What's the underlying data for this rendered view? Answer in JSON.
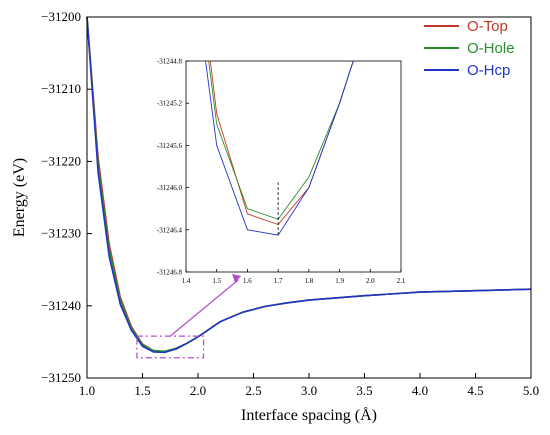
{
  "chart_data": {
    "type": "line",
    "xlabel": "Interface spacing (Å)",
    "ylabel": "Energy (eV)",
    "xlim": [
      1.0,
      5.0
    ],
    "ylim": [
      -31250,
      -31200
    ],
    "xticks": [
      "1.0",
      "1.5",
      "2.0",
      "2.5",
      "3.0",
      "3.5",
      "4.0",
      "4.5",
      "5.0"
    ],
    "yticks": [
      "−31200",
      "−31210",
      "−31220",
      "−31230",
      "−31240",
      "−31250"
    ],
    "legend_position": "top-right",
    "grid": false,
    "series": [
      {
        "name": "O-Top",
        "color": "#c0392b",
        "x": [
          1.0,
          1.1,
          1.2,
          1.3,
          1.4,
          1.5,
          1.6,
          1.7,
          1.8,
          1.9,
          2.0,
          2.2,
          2.4,
          2.6,
          2.8,
          3.0,
          3.5,
          4.0,
          4.5,
          5.0
        ],
        "y": [
          -31200,
          -31219.5,
          -31231.5,
          -31238.8,
          -31242.9,
          -31245.3,
          -31246.25,
          -31246.35,
          -31246.0,
          -31245.2,
          -31244.3,
          -31242.2,
          -31240.9,
          -31240.1,
          -31239.6,
          -31239.2,
          -31238.6,
          -31238.1,
          -31237.9,
          -31237.7
        ]
      },
      {
        "name": "O-Hole",
        "color": "#2a8c2a",
        "x": [
          1.0,
          1.1,
          1.2,
          1.3,
          1.4,
          1.5,
          1.6,
          1.7,
          1.8,
          1.9,
          2.0,
          2.2,
          2.4,
          2.6,
          2.8,
          3.0,
          3.5,
          4.0,
          4.5,
          5.0
        ],
        "y": [
          -31200,
          -31220.5,
          -31232.2,
          -31239.2,
          -31243.1,
          -31245.4,
          -31246.2,
          -31246.3,
          -31245.9,
          -31245.2,
          -31244.3,
          -31242.2,
          -31240.9,
          -31240.1,
          -31239.6,
          -31239.2,
          -31238.6,
          -31238.1,
          -31237.9,
          -31237.7
        ]
      },
      {
        "name": "O-Hcp",
        "color": "#1f35c8",
        "x": [
          1.0,
          1.1,
          1.2,
          1.3,
          1.4,
          1.5,
          1.6,
          1.7,
          1.8,
          1.9,
          2.0,
          2.2,
          2.4,
          2.6,
          2.8,
          3.0,
          3.5,
          4.0,
          4.5,
          5.0
        ],
        "y": [
          -31200,
          -31221.5,
          -31233.2,
          -31239.8,
          -31243.4,
          -31245.6,
          -31246.4,
          -31246.45,
          -31246.0,
          -31245.2,
          -31244.3,
          -31242.2,
          -31240.9,
          -31240.1,
          -31239.6,
          -31239.2,
          -31238.6,
          -31238.1,
          -31237.9,
          -31237.7
        ]
      }
    ],
    "inset": {
      "xlim": [
        1.4,
        2.1
      ],
      "ylim": [
        -31246.8,
        -31244.8
      ],
      "xticks": [
        "1.4",
        "1.5",
        "1.6",
        "1.7",
        "1.8",
        "1.9",
        "2.0",
        "2.1"
      ],
      "yticks": [
        "-31244.8",
        "-31245.2",
        "-31245.6",
        "-31246.0",
        "-31246.4",
        "-31246.8"
      ],
      "marker_x": 1.7
    },
    "zoom_box": {
      "x_range": [
        1.45,
        2.05
      ],
      "y_range": [
        -31247.2,
        -31244.2
      ]
    }
  }
}
